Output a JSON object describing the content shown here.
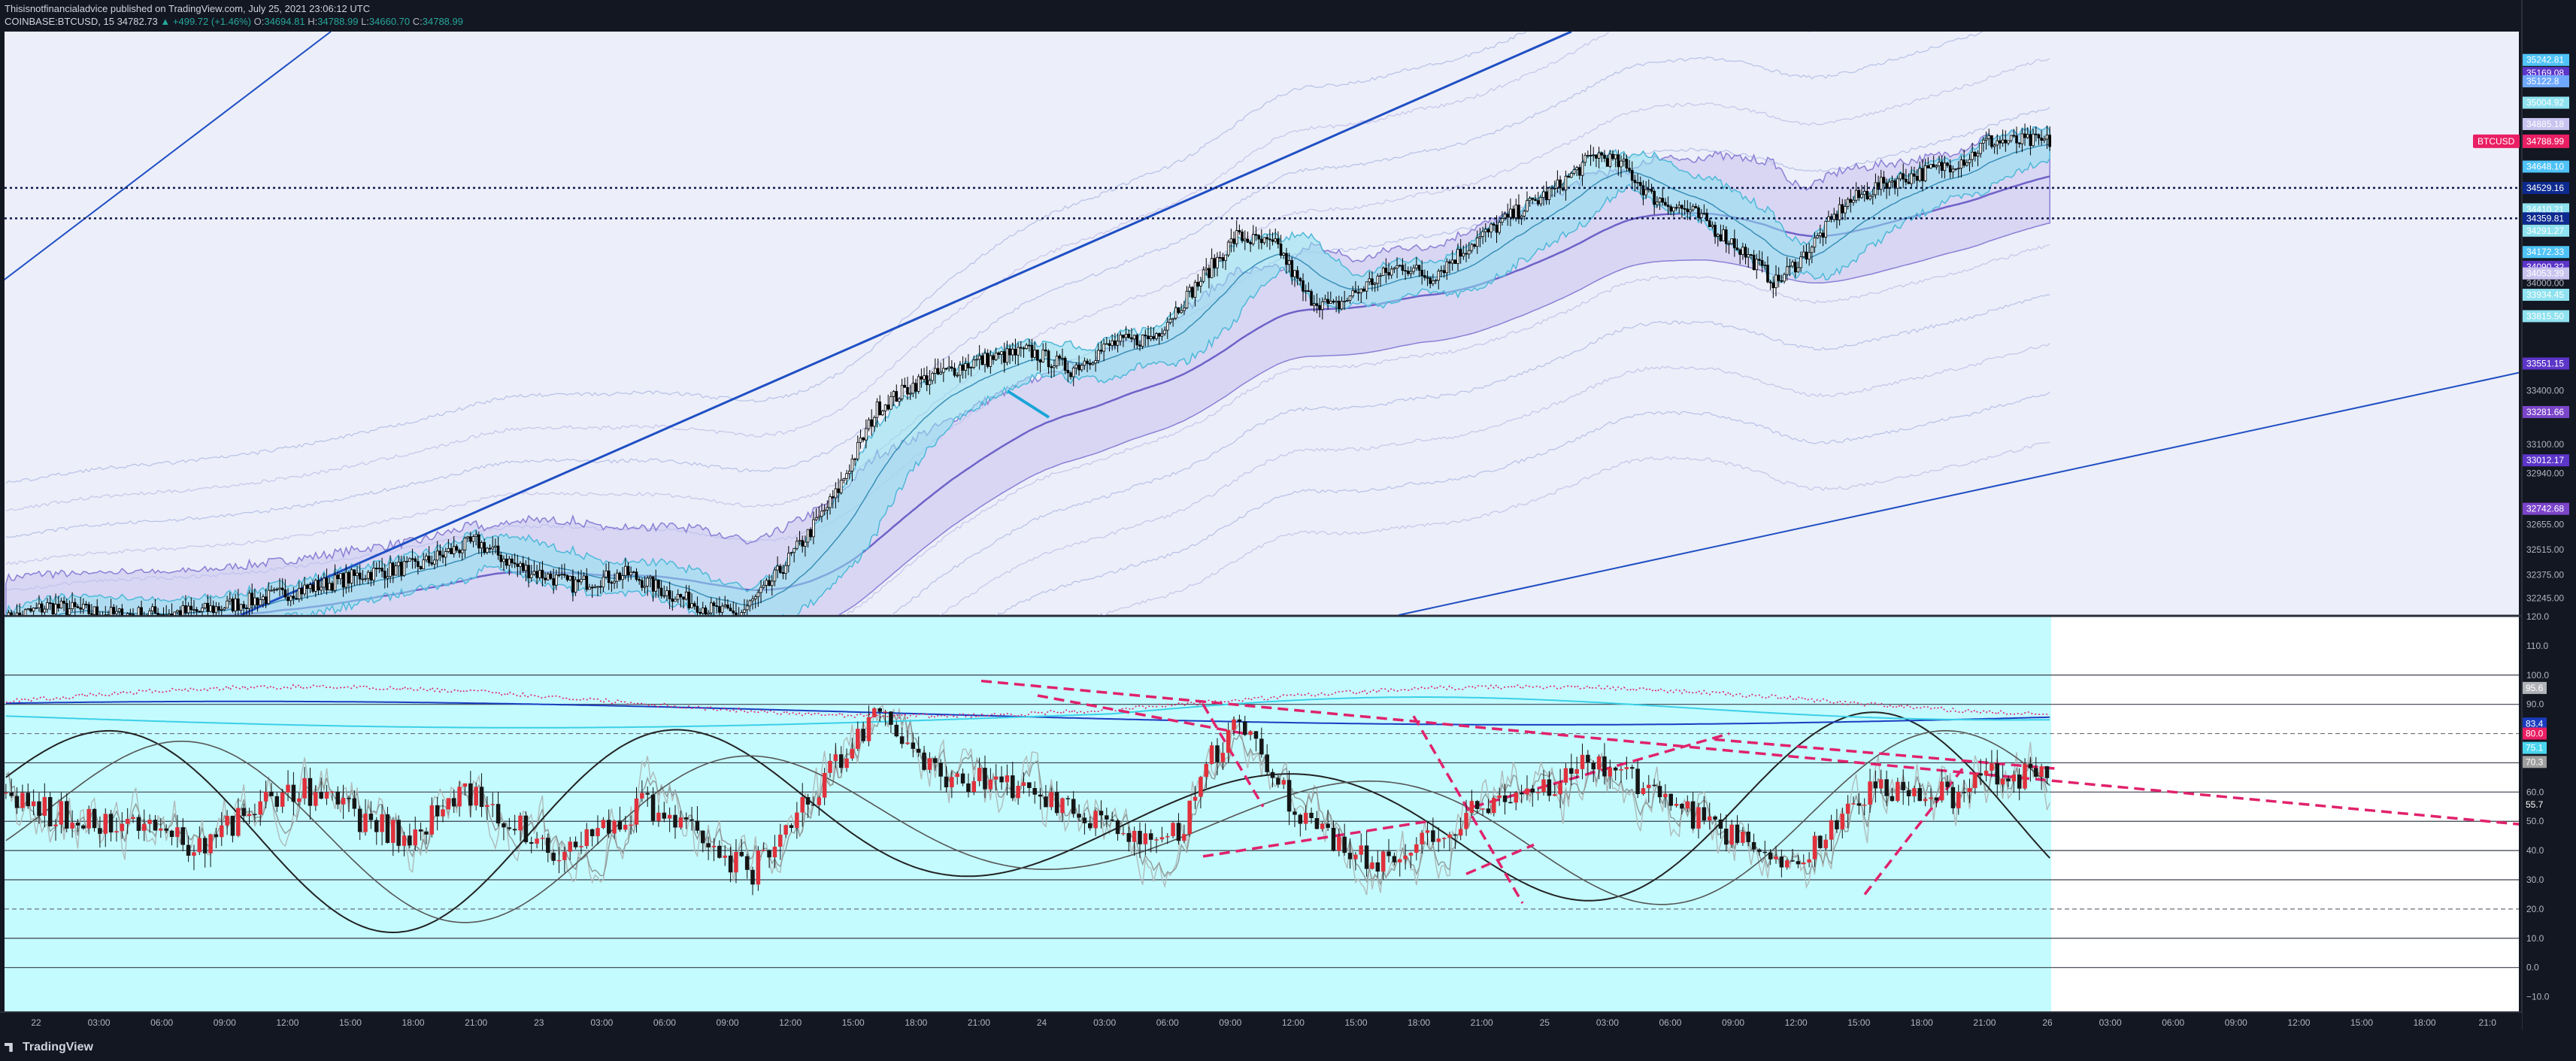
{
  "header": {
    "published_line": "Thisisnotfinancialadvice published on TradingView.com, July 25, 2021 23:06:12 UTC",
    "symbol": "COINBASE:BTCUSD, 15",
    "last": "34782.73",
    "change": "▲ +499.72 (+1.46%)",
    "open_label": "O:",
    "open": "34694.81",
    "high_label": "H:",
    "high": "34788.99",
    "low_label": "L:",
    "low": "34660.70",
    "close_label": "C:",
    "close": "34788.99"
  },
  "brand": {
    "name": "TradingView"
  },
  "colors": {
    "background": "#131722",
    "price_pane": "#eceef9",
    "osc_pane": "#c4fbff",
    "candle": "#000000",
    "cyan_band": "#8fe2ef",
    "purple_band": "#c8c3ef",
    "trendline": "#1f4fc4",
    "dashed_trend": "#e0226b",
    "btc_badge": "#e91e63"
  },
  "chart_data": [
    {
      "type": "candlestick",
      "pane": "price",
      "symbol_badge": "BTCUSD",
      "last_price": 34788.99,
      "ylim": [
        32150,
        35400
      ],
      "price_ticks": [
        "34000.00",
        "33400.00",
        "33100.00",
        "32940.00",
        "32655.00",
        "32515.00",
        "32375.00",
        "32245.00"
      ],
      "right_badges": [
        {
          "label": "35242.81",
          "color": "#4fc3f7",
          "price": 35242
        },
        {
          "label": "35169.08",
          "color": "#5c35c9",
          "price": 35169
        },
        {
          "label": "35122.8",
          "color": "#6fa8ff",
          "price": 35123
        },
        {
          "label": "35004.92",
          "color": "#8fe2ef",
          "price": 35004
        },
        {
          "label": "34885.18",
          "color": "#c8c3ef",
          "price": 34885
        },
        {
          "label": "34648.10",
          "color": "#4fc3f7",
          "price": 34648
        },
        {
          "label": "34529.16",
          "color": "#0d2a8f",
          "price": 34529
        },
        {
          "label": "34410.21",
          "color": "#8fe2ef",
          "price": 34410
        },
        {
          "label": "34359.81",
          "color": "#0d2a8f",
          "price": 34360
        },
        {
          "label": "34291.27",
          "color": "#8fe2ef",
          "price": 34291
        },
        {
          "label": "34172.33",
          "color": "#4fc3f7",
          "price": 34172
        },
        {
          "label": "34090.32",
          "color": "#5c35c9",
          "price": 34090
        },
        {
          "label": "34053.39",
          "color": "#c8c3ef",
          "price": 34053
        },
        {
          "label": "33934.45",
          "color": "#8fe2ef",
          "price": 33934
        },
        {
          "label": "33815.50",
          "color": "#8fe2ef",
          "price": 33815
        },
        {
          "label": "33551.15",
          "color": "#5c35c9",
          "price": 33551
        },
        {
          "label": "33281.66",
          "color": "#7b45c9",
          "price": 33281
        },
        {
          "label": "33012.17",
          "color": "#5c35c9",
          "price": 33012
        },
        {
          "label": "32742.68",
          "color": "#7b45c9",
          "price": 32742
        }
      ],
      "horizontal_levels": [
        34529.16,
        34359.81
      ],
      "anchor_path": [
        [
          0,
          32120
        ],
        [
          15,
          32200
        ],
        [
          40,
          32150
        ],
        [
          70,
          32170
        ],
        [
          95,
          32250
        ],
        [
          115,
          32320
        ],
        [
          130,
          32380
        ],
        [
          150,
          32430
        ],
        [
          160,
          32500
        ],
        [
          170,
          32560
        ],
        [
          185,
          32420
        ],
        [
          205,
          32320
        ],
        [
          225,
          32380
        ],
        [
          240,
          32270
        ],
        [
          255,
          32180
        ],
        [
          265,
          32150
        ],
        [
          275,
          32300
        ],
        [
          290,
          32600
        ],
        [
          300,
          32820
        ],
        [
          315,
          33300
        ],
        [
          330,
          33450
        ],
        [
          350,
          33560
        ],
        [
          370,
          33620
        ],
        [
          385,
          33520
        ],
        [
          400,
          33660
        ],
        [
          415,
          33700
        ],
        [
          430,
          33980
        ],
        [
          445,
          34260
        ],
        [
          460,
          34200
        ],
        [
          470,
          33930
        ],
        [
          480,
          33860
        ],
        [
          495,
          34020
        ],
        [
          505,
          34100
        ],
        [
          515,
          34030
        ],
        [
          530,
          34220
        ],
        [
          545,
          34380
        ],
        [
          560,
          34520
        ],
        [
          575,
          34720
        ],
        [
          585,
          34650
        ],
        [
          595,
          34480
        ],
        [
          610,
          34390
        ],
        [
          625,
          34220
        ],
        [
          640,
          34000
        ],
        [
          650,
          34150
        ],
        [
          665,
          34440
        ],
        [
          680,
          34560
        ],
        [
          695,
          34620
        ],
        [
          710,
          34700
        ],
        [
          716,
          34788
        ]
      ],
      "time_labels": [
        "22",
        "03:00",
        "06:00",
        "09:00",
        "12:00",
        "15:00",
        "18:00",
        "21:00",
        "23",
        "03:00",
        "06:00",
        "09:00",
        "12:00",
        "15:00",
        "18:00",
        "21:00",
        "24",
        "03:00",
        "06:00",
        "09:00",
        "12:00",
        "15:00",
        "18:00",
        "21:00",
        "25",
        "03:00",
        "06:00",
        "09:00",
        "12:00",
        "15:00",
        "18:00",
        "21:00",
        "26",
        "03:00",
        "06:00",
        "09:00",
        "12:00",
        "15:00",
        "18:00",
        "21:0"
      ]
    },
    {
      "type": "candlestick",
      "pane": "oscillator",
      "ylim": [
        -15,
        120
      ],
      "ticks": [
        120,
        110,
        100,
        90,
        80,
        70,
        60,
        50,
        40,
        30,
        20,
        10,
        0,
        -10
      ],
      "tick_labels": [
        "120.0",
        "110.0",
        "100.0",
        "90.0",
        "80.0",
        "70.0",
        "60.0",
        "50.0",
        "40.0",
        "30.0",
        "20.0",
        "10.0",
        "0.0",
        "−10.0"
      ],
      "solid_levels": [
        100,
        90,
        70,
        60,
        50,
        40,
        30,
        10,
        0
      ],
      "dashed_levels": [
        80,
        20
      ],
      "right_badges": [
        {
          "label": "95.6",
          "color": "#b0b3b8",
          "value": 95.6
        },
        {
          "label": "83.4",
          "color": "#1a3dbf",
          "value": 83.4
        },
        {
          "label": "80.0",
          "color": "#e91e63",
          "value": 80.0
        },
        {
          "label": "75.1",
          "color": "#4ad6ee",
          "value": 75.1
        },
        {
          "label": "70.3",
          "color": "#9e9e9e",
          "value": 70.3
        },
        {
          "label": "55.7",
          "color": "#131722",
          "value": 55.7
        }
      ],
      "anchor_path": [
        [
          0,
          58
        ],
        [
          20,
          52
        ],
        [
          40,
          48
        ],
        [
          55,
          50
        ],
        [
          65,
          40
        ],
        [
          75,
          44
        ],
        [
          90,
          55
        ],
        [
          105,
          62
        ],
        [
          115,
          58
        ],
        [
          130,
          50
        ],
        [
          145,
          44
        ],
        [
          160,
          56
        ],
        [
          170,
          60
        ],
        [
          185,
          48
        ],
        [
          200,
          40
        ],
        [
          215,
          45
        ],
        [
          230,
          55
        ],
        [
          245,
          49
        ],
        [
          260,
          38
        ],
        [
          270,
          33
        ],
        [
          285,
          52
        ],
        [
          300,
          70
        ],
        [
          315,
          85
        ],
        [
          325,
          78
        ],
        [
          340,
          66
        ],
        [
          360,
          62
        ],
        [
          380,
          56
        ],
        [
          395,
          50
        ],
        [
          410,
          42
        ],
        [
          425,
          48
        ],
        [
          435,
          70
        ],
        [
          445,
          86
        ],
        [
          455,
          70
        ],
        [
          465,
          56
        ],
        [
          480,
          44
        ],
        [
          495,
          36
        ],
        [
          510,
          42
        ],
        [
          525,
          50
        ],
        [
          540,
          58
        ],
        [
          560,
          64
        ],
        [
          575,
          70
        ],
        [
          590,
          64
        ],
        [
          605,
          54
        ],
        [
          620,
          46
        ],
        [
          635,
          40
        ],
        [
          645,
          35
        ],
        [
          660,
          47
        ],
        [
          675,
          62
        ],
        [
          690,
          60
        ],
        [
          705,
          58
        ],
        [
          716,
          66
        ]
      ]
    }
  ]
}
